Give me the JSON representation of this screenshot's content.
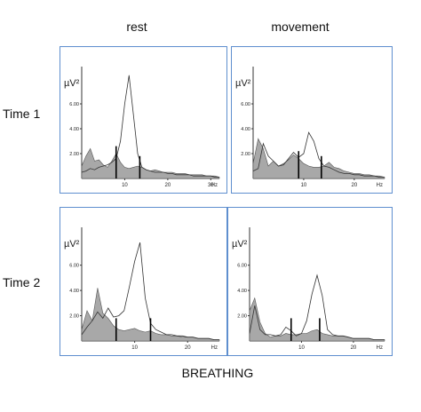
{
  "labels": {
    "col_rest": "rest",
    "col_movement": "movement",
    "row_time1": "Time 1",
    "row_time2": "Time 2",
    "bottom": "BREATHING"
  },
  "colors": {
    "panel_border": "#5f8fcf",
    "filled_series": "#a8a8a8",
    "line_series": "#333333"
  },
  "chart_data": [
    {
      "type": "area",
      "panel": "Time 1 rest",
      "ylabel": "µV²",
      "yticks": [
        "2.00",
        "4.00",
        "6.00"
      ],
      "xticks": [
        "10",
        "20",
        "30"
      ],
      "xunit": "Hz",
      "xlim": [
        0,
        32
      ],
      "ylim": [
        0,
        9
      ],
      "x": [
        0,
        1,
        2,
        3,
        4,
        5,
        6,
        7,
        8,
        9,
        10,
        11,
        12,
        13,
        14,
        15,
        16,
        17,
        18,
        19,
        20,
        21,
        22,
        23,
        24,
        25,
        26,
        27,
        28,
        29,
        30,
        31,
        32
      ],
      "series": [
        {
          "style": "filled",
          "values": [
            1.0,
            1.8,
            2.4,
            1.4,
            1.5,
            1.1,
            0.9,
            1.4,
            2.0,
            1.3,
            0.9,
            0.8,
            0.9,
            1.0,
            0.9,
            0.7,
            0.6,
            0.7,
            0.6,
            0.5,
            0.5,
            0.5,
            0.4,
            0.4,
            0.4,
            0.3,
            0.3,
            0.3,
            0.3,
            0.2,
            0.2,
            0.2,
            0.1
          ]
        },
        {
          "style": "line",
          "values": [
            0.5,
            0.6,
            0.8,
            0.7,
            0.9,
            1.0,
            1.1,
            1.3,
            1.6,
            3.0,
            6.0,
            8.3,
            5.2,
            2.0,
            0.9,
            0.7,
            0.6,
            0.5,
            0.5,
            0.5,
            0.4,
            0.4,
            0.3,
            0.3,
            0.3,
            0.3,
            0.2,
            0.2,
            0.2,
            0.2,
            0.2,
            0.1,
            0.1
          ]
        }
      ],
      "markers": [
        8,
        13.5
      ]
    },
    {
      "type": "area",
      "panel": "Time 1 movement",
      "ylabel": "µV²",
      "yticks": [
        "2.00",
        "4.00",
        "6.00"
      ],
      "xticks": [
        "10",
        "20"
      ],
      "xunit": "Hz",
      "xlim": [
        0,
        26
      ],
      "ylim": [
        0,
        9
      ],
      "x": [
        0,
        1,
        2,
        3,
        4,
        5,
        6,
        7,
        8,
        9,
        10,
        11,
        12,
        13,
        14,
        15,
        16,
        17,
        18,
        19,
        20,
        21,
        22,
        23,
        24,
        25,
        26
      ],
      "series": [
        {
          "style": "filled",
          "values": [
            1.2,
            3.2,
            2.4,
            1.0,
            1.4,
            1.0,
            1.2,
            1.5,
            1.9,
            1.6,
            1.2,
            1.0,
            0.9,
            0.9,
            1.0,
            1.3,
            0.9,
            0.8,
            0.6,
            0.5,
            0.4,
            0.4,
            0.3,
            0.3,
            0.2,
            0.2,
            0.1
          ]
        },
        {
          "style": "line",
          "values": [
            0.6,
            0.8,
            2.8,
            1.8,
            1.4,
            1.0,
            1.1,
            1.6,
            2.1,
            1.7,
            2.0,
            3.7,
            3.0,
            1.6,
            1.0,
            0.9,
            0.7,
            0.5,
            0.4,
            0.4,
            0.3,
            0.3,
            0.2,
            0.2,
            0.2,
            0.1,
            0.1
          ]
        }
      ],
      "markers": [
        9,
        13.5
      ]
    },
    {
      "type": "area",
      "panel": "Time 2 rest",
      "ylabel": "µV²",
      "yticks": [
        "2.00",
        "4.00",
        "6.00"
      ],
      "xticks": [
        "10",
        "20"
      ],
      "xunit": "Hz",
      "xlim": [
        0,
        26
      ],
      "ylim": [
        0,
        9
      ],
      "x": [
        0,
        1,
        2,
        3,
        4,
        5,
        6,
        7,
        8,
        9,
        10,
        11,
        12,
        13,
        14,
        15,
        16,
        17,
        18,
        19,
        20,
        21,
        22,
        23,
        24,
        25,
        26
      ],
      "series": [
        {
          "style": "filled",
          "values": [
            0.9,
            2.4,
            1.6,
            4.2,
            2.2,
            1.8,
            1.2,
            0.9,
            0.8,
            0.9,
            1.0,
            0.8,
            0.7,
            0.8,
            0.6,
            0.5,
            0.5,
            0.4,
            0.4,
            0.3,
            0.3,
            0.3,
            0.2,
            0.2,
            0.2,
            0.1,
            0.1
          ]
        },
        {
          "style": "line",
          "values": [
            0.5,
            1.1,
            1.6,
            2.3,
            1.8,
            2.6,
            1.9,
            2.0,
            2.4,
            4.3,
            6.3,
            7.8,
            3.4,
            1.4,
            0.9,
            0.7,
            0.5,
            0.5,
            0.4,
            0.4,
            0.3,
            0.3,
            0.2,
            0.2,
            0.2,
            0.1,
            0.1
          ]
        }
      ],
      "markers": [
        6.5,
        13
      ]
    },
    {
      "type": "area",
      "panel": "Time 2 movement",
      "ylabel": "µV²",
      "yticks": [
        "2.00",
        "4.00",
        "6.00"
      ],
      "xticks": [
        "10",
        "20"
      ],
      "xunit": "Hz",
      "xlim": [
        0,
        26
      ],
      "ylim": [
        0,
        9
      ],
      "x": [
        0,
        1,
        2,
        3,
        4,
        5,
        6,
        7,
        8,
        9,
        10,
        11,
        12,
        13,
        14,
        15,
        16,
        17,
        18,
        19,
        20,
        21,
        22,
        23,
        24,
        25,
        26
      ],
      "series": [
        {
          "style": "filled",
          "values": [
            2.4,
            3.4,
            1.5,
            0.6,
            0.3,
            0.4,
            0.4,
            0.6,
            0.5,
            0.5,
            0.6,
            0.6,
            0.8,
            0.9,
            0.6,
            0.5,
            0.4,
            0.4,
            0.4,
            0.3,
            0.2,
            0.2,
            0.2,
            0.2,
            0.1,
            0.1,
            0.1
          ]
        },
        {
          "style": "line",
          "values": [
            0.6,
            2.8,
            0.9,
            0.5,
            0.5,
            0.4,
            0.5,
            1.1,
            0.8,
            0.4,
            0.6,
            1.6,
            3.7,
            5.2,
            3.6,
            0.9,
            0.5,
            0.4,
            0.4,
            0.3,
            0.2,
            0.2,
            0.2,
            0.2,
            0.1,
            0.1,
            0.1
          ]
        }
      ],
      "markers": [
        8,
        13.5
      ]
    }
  ]
}
